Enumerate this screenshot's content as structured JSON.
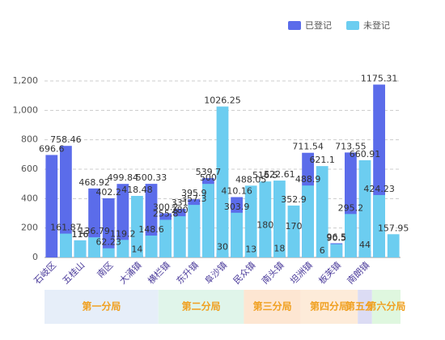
{
  "chart_data": {
    "type": "bar",
    "categories": [
      "石岐区",
      null,
      "五桂山",
      null,
      "南区",
      null,
      "大涌镇",
      null,
      "横栏镇",
      null,
      "东升镇",
      null,
      "阜沙镇",
      null,
      "民众镇",
      null,
      "南头镇",
      null,
      "坦洲镇",
      null,
      "板芙镇",
      null,
      "南朗镇",
      null,
      null
    ],
    "series": [
      {
        "name": "已登记",
        "color": "#5b6cea",
        "values": [
          696.6,
          758.46,
          116,
          468.92,
          402.2,
          499.84,
          14,
          500.33,
          300.2,
          331,
          395.9,
          539.7,
          30,
          410.16,
          13,
          180,
          18,
          170,
          711.54,
          6,
          96.5,
          713.55,
          44,
          1175.31,
          null
        ]
      },
      {
        "name": "未登记",
        "color": "#6ccdf0",
        "values": [
          null,
          161.87,
          116,
          136.79,
          62.23,
          119.2,
          418.48,
          148.6,
          255.8,
          280,
          357.3,
          500,
          1026.25,
          303.9,
          488.05,
          516.5,
          522.61,
          352.9,
          488.9,
          621.1,
          90.5,
          295.2,
          660.91,
          424.23,
          157.95
        ]
      }
    ],
    "ylim": [
      0,
      1200
    ],
    "yticks": [
      0,
      200,
      400,
      600,
      800,
      {
        "value": 1000,
        "label": "1,000"
      },
      {
        "value": 1200,
        "label": "1,200"
      }
    ],
    "grid": true,
    "legend": "top-right",
    "groups": [
      {
        "name": "第一分局",
        "color": "#e6eef9"
      },
      {
        "name": "第二分局",
        "color": "#e0f5ea"
      },
      {
        "name": "第三分局",
        "color": "#fde6d2"
      },
      {
        "name": "第四分局",
        "color": "#fdebd9"
      },
      {
        "name": "第五分局",
        "color": "#dcdcf4"
      },
      {
        "name": "第六分局",
        "color": "#dff7df"
      }
    ],
    "category_groups": [
      "第一分局",
      "第一分局",
      "第一分局",
      "第一分局",
      "第一分局",
      "第一分局",
      "第一分局",
      "第一分局",
      "第二分局",
      "第二分局",
      "第二分局",
      "第二分局",
      "第二分局",
      "第二分局",
      "第三分局",
      "第三分局",
      "第三分局",
      "第三分局",
      "第四分局",
      "第四分局",
      "第四分局",
      "第四分局",
      "第五分局",
      "第六分局",
      "第六分局"
    ]
  }
}
